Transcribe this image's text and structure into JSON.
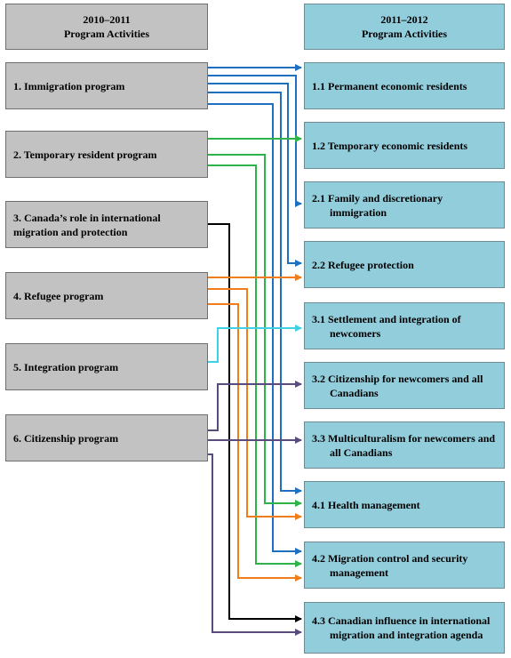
{
  "left_header": {
    "year": "2010–2011",
    "title": "Program Activities"
  },
  "right_header": {
    "year": "2011–2012",
    "title": "Program Activities"
  },
  "left_items": [
    "1. Immigration program",
    "2. Temporary resident program",
    "3. Canada’s role in international migration and protection",
    "4. Refugee program",
    "5. Integration program",
    "6. Citizenship program"
  ],
  "right_items": [
    "1.1 Permanent economic residents",
    "1.2 Temporary economic residents",
    "2.1 Family and discretionary immigration",
    "2.2 Refugee protection",
    "3.1 Settlement and integration of newcomers",
    "3.2 Citizenship for newcomers and all Canadians",
    "3.3 Multiculturalism for newcomers and all Canadians",
    "4.1 Health management",
    "4.2 Migration control and security management",
    "4.3 Canadian influence in international migration and integration agenda"
  ],
  "colors": {
    "immigration": "#1f6fc0",
    "temporary": "#2db34a",
    "canada_role": "#000000",
    "refugee": "#f07d1a",
    "integration": "#3fd0e6",
    "citizenship": "#5a4b7e"
  }
}
